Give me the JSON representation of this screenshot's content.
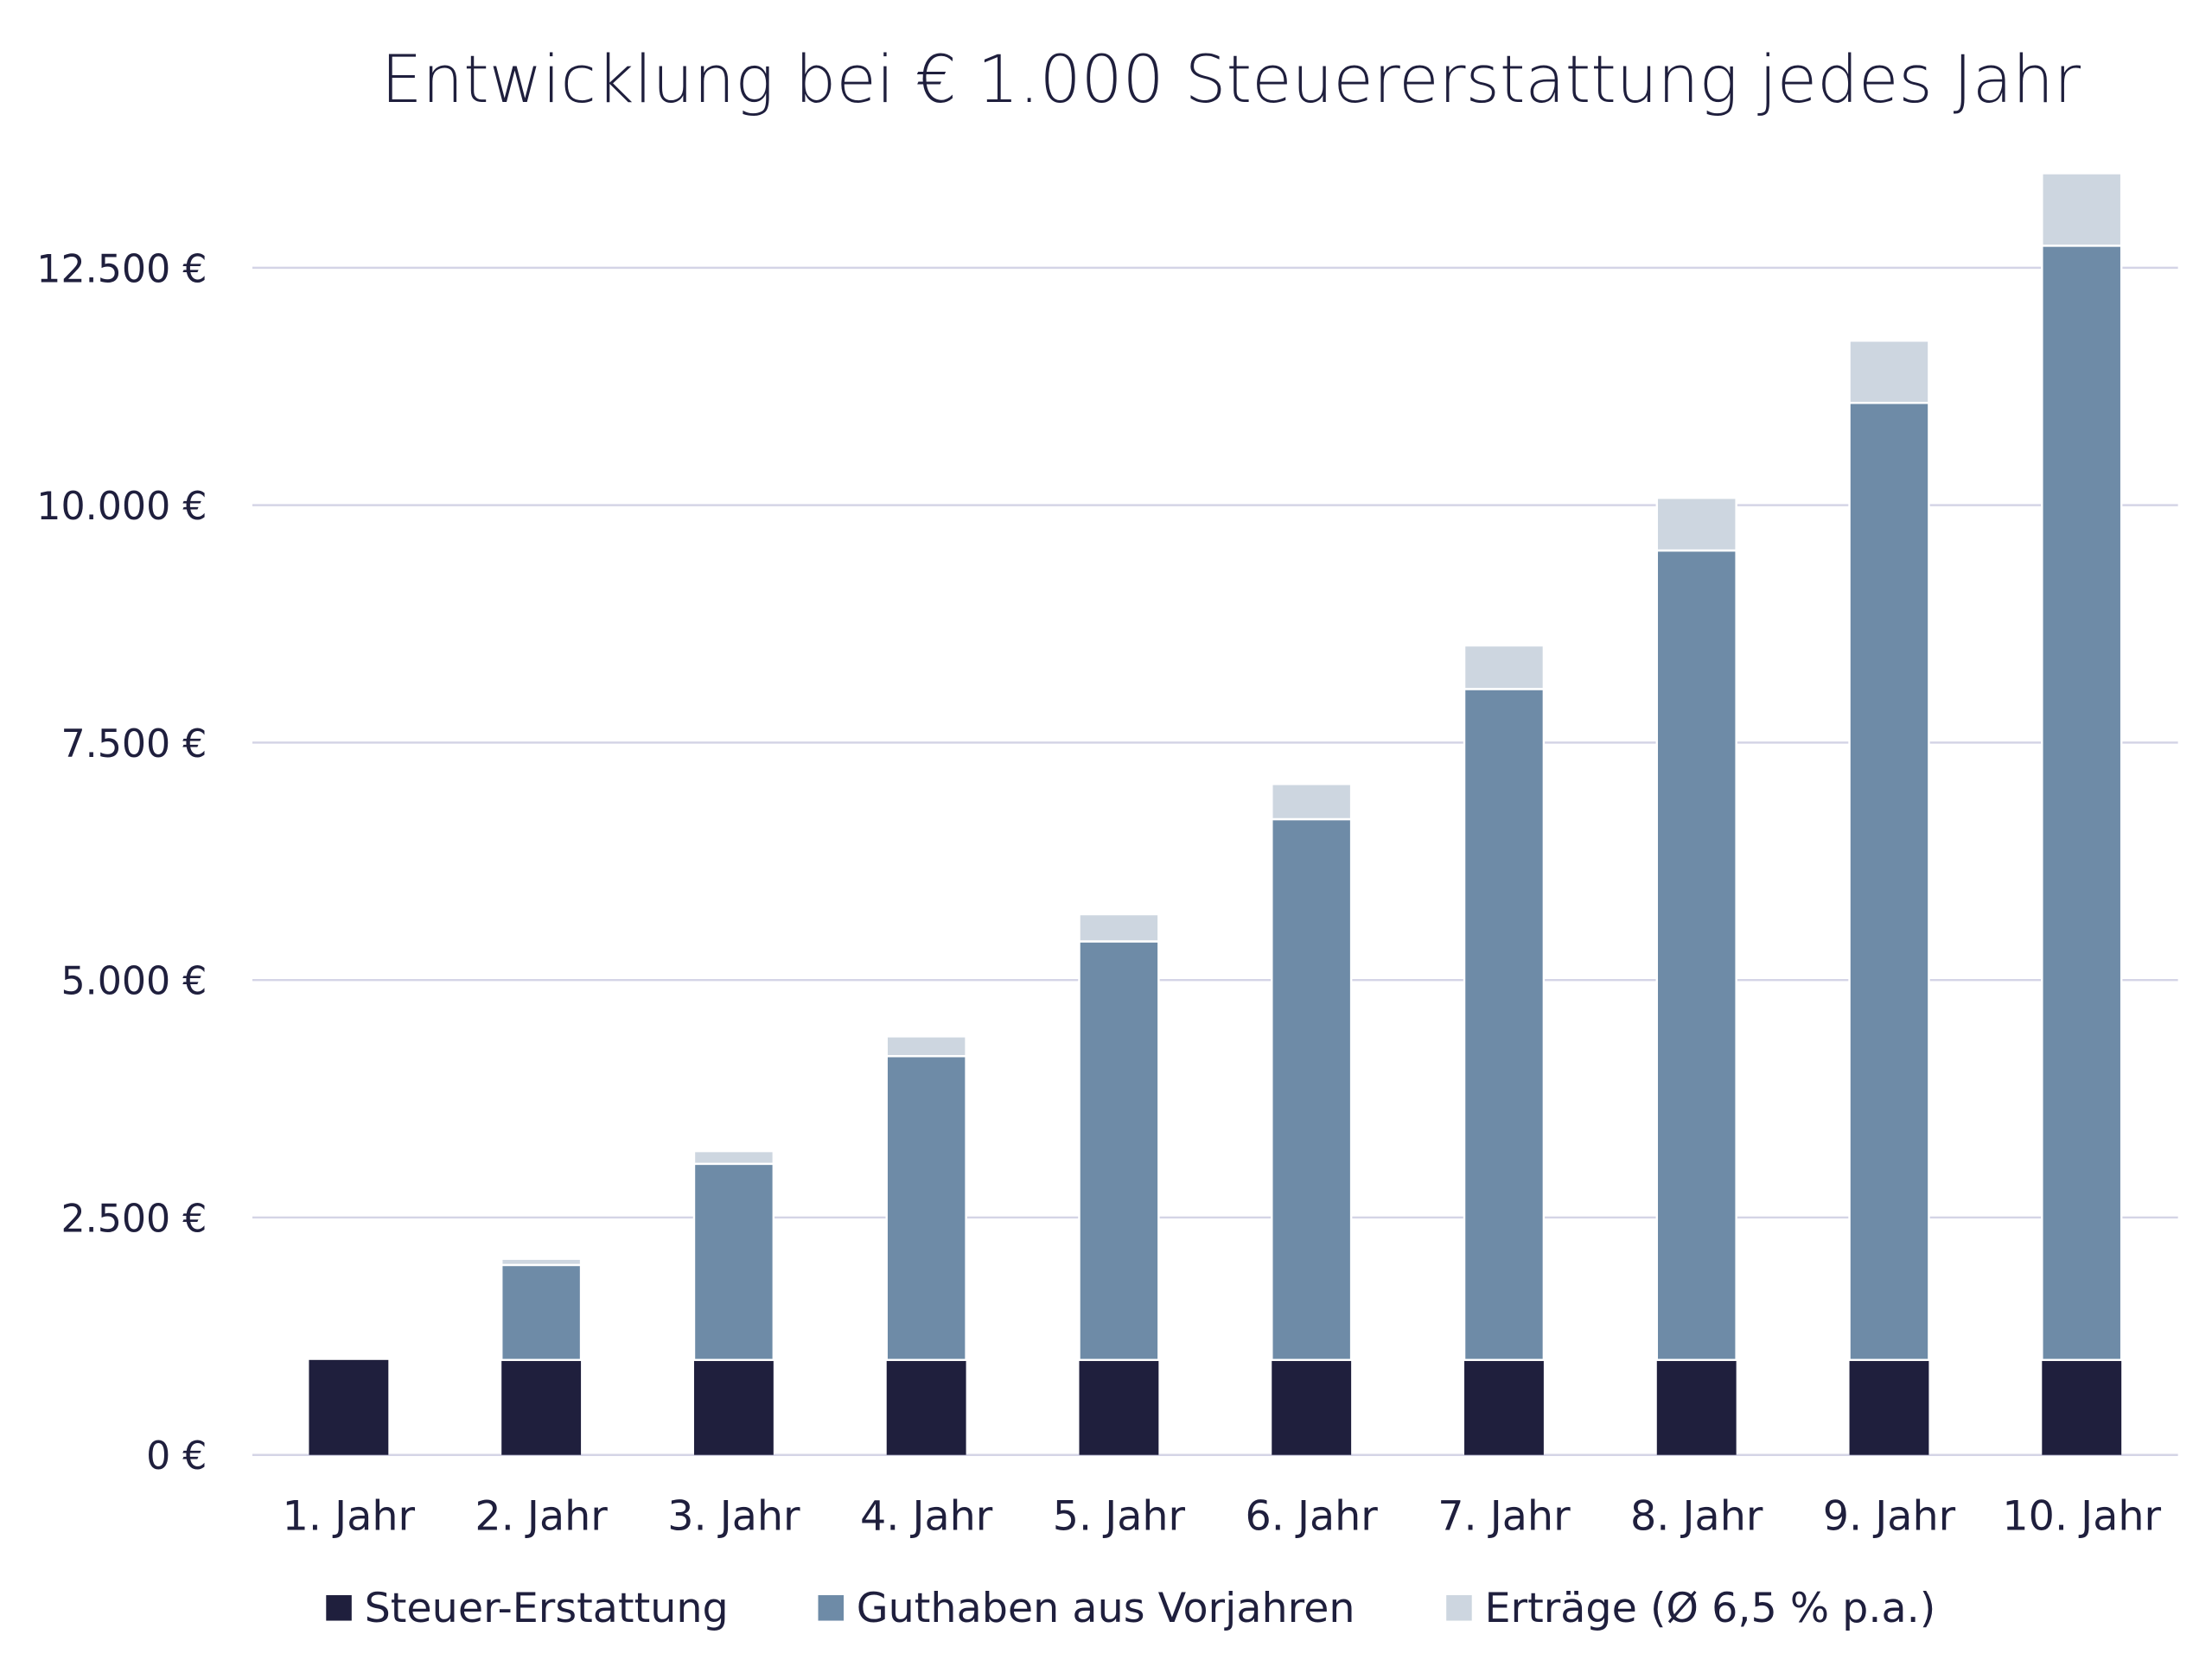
{
  "chart_data": {
    "type": "bar",
    "stacked": true,
    "title": "Entwicklung bei € 1.000 Steuererstattung jedes Jahr",
    "xlabel": "",
    "ylabel": "",
    "categories": [
      "1. Jahr",
      "2. Jahr",
      "3. Jahr",
      "4. Jahr",
      "5. Jahr",
      "6. Jahr",
      "7. Jahr",
      "8. Jahr",
      "9. Jahr",
      "10. Jahr"
    ],
    "series": [
      {
        "name": "Steuer-Erstattung",
        "color": "#1f1f3d",
        "values": [
          1000,
          1000,
          1000,
          1000,
          1000,
          1000,
          1000,
          1000,
          1000,
          1000
        ]
      },
      {
        "name": "Guthaben aus Vorjahren",
        "color": "#6e8ba7",
        "values": [
          0,
          1000,
          2065,
          3199,
          4407,
          5694,
          7064,
          8523,
          10077,
          11732
        ]
      },
      {
        "name": "Erträge (Ø 6,5 % p.a.)",
        "color": "#cdd6e0",
        "values": [
          0,
          65,
          134,
          208,
          286,
          370,
          459,
          554,
          655,
          763
        ]
      }
    ],
    "yticks": [
      0,
      2500,
      5000,
      7500,
      10000,
      12500
    ],
    "ytick_labels": [
      "0 €",
      "2.500 €",
      "5.000 €",
      "7.500 €",
      "10.000 €",
      "12.500 €"
    ],
    "ylim": [
      0,
      13500
    ],
    "grid": true,
    "legend": "bottom",
    "colors": {
      "text": "#1f1f3d",
      "grid": "#d4d4e6"
    }
  }
}
